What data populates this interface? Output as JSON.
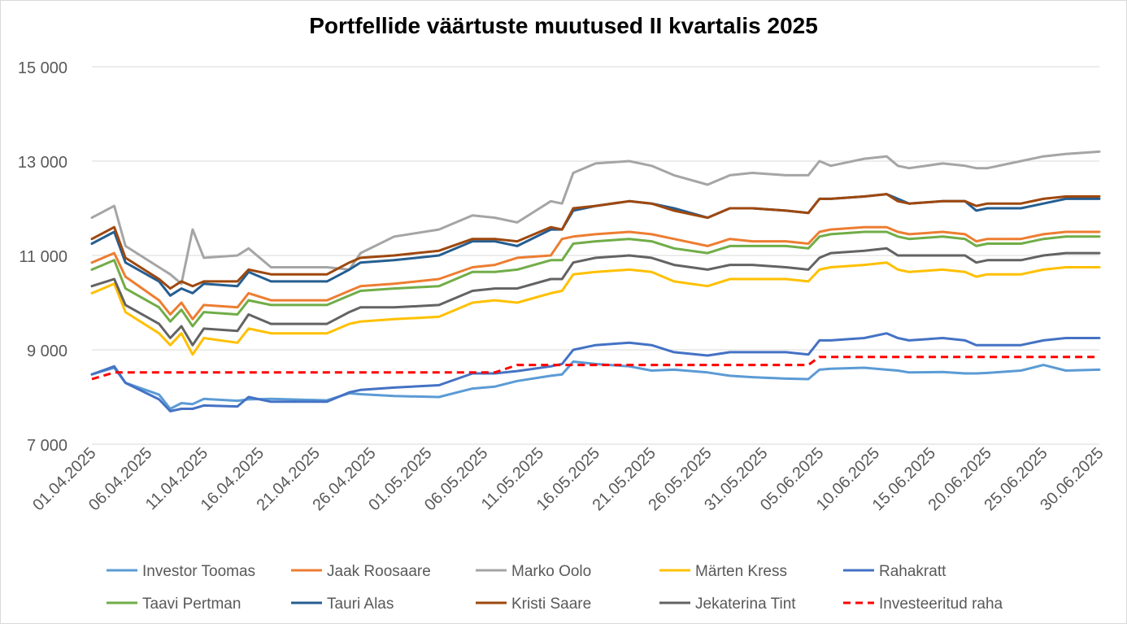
{
  "chart_data": {
    "type": "line",
    "title": "Portfellide väärtuste muutused II kvartalis 2025",
    "xlabel": "",
    "ylabel": "",
    "ylim": [
      7000,
      15000
    ],
    "y_ticks": [
      "7 000",
      "9 000",
      "11 000",
      "13 000",
      "15 000"
    ],
    "y_tick_values": [
      7000,
      9000,
      11000,
      13000,
      15000
    ],
    "x_range": [
      "2025-04-01",
      "2025-06-30"
    ],
    "x_tick_labels": [
      "01.04.2025",
      "06.04.2025",
      "11.04.2025",
      "16.04.2025",
      "21.04.2025",
      "26.04.2025",
      "01.05.2025",
      "06.05.2025",
      "11.05.2025",
      "16.05.2025",
      "21.05.2025",
      "26.05.2025",
      "31.05.2025",
      "05.06.2025",
      "10.06.2025",
      "15.06.2025",
      "20.06.2025",
      "25.06.2025",
      "30.06.2025"
    ],
    "grid": "horizontal",
    "legend_position": "bottom",
    "x": [
      "2025-04-01",
      "2025-04-03",
      "2025-04-04",
      "2025-04-07",
      "2025-04-08",
      "2025-04-09",
      "2025-04-10",
      "2025-04-11",
      "2025-04-14",
      "2025-04-15",
      "2025-04-17",
      "2025-04-22",
      "2025-04-24",
      "2025-04-25",
      "2025-04-28",
      "2025-05-02",
      "2025-05-05",
      "2025-05-07",
      "2025-05-09",
      "2025-05-12",
      "2025-05-13",
      "2025-05-14",
      "2025-05-16",
      "2025-05-19",
      "2025-05-21",
      "2025-05-23",
      "2025-05-26",
      "2025-05-28",
      "2025-05-30",
      "2025-06-02",
      "2025-06-04",
      "2025-06-05",
      "2025-06-06",
      "2025-06-09",
      "2025-06-11",
      "2025-06-12",
      "2025-06-13",
      "2025-06-16",
      "2025-06-18",
      "2025-06-19",
      "2025-06-20",
      "2025-06-23",
      "2025-06-25",
      "2025-06-27",
      "2025-06-30"
    ],
    "series": [
      {
        "name": "Investor Toomas",
        "color": "#5b9bd5",
        "dash": false,
        "values": [
          8480,
          8620,
          8300,
          8050,
          7750,
          7870,
          7850,
          7960,
          7920,
          7950,
          7960,
          7930,
          8080,
          8060,
          8020,
          8000,
          8180,
          8220,
          8340,
          8450,
          8480,
          8750,
          8700,
          8650,
          8560,
          8580,
          8520,
          8450,
          8420,
          8390,
          8380,
          8580,
          8600,
          8620,
          8580,
          8560,
          8520,
          8530,
          8500,
          8500,
          8510,
          8560,
          8680,
          8560,
          8580
        ]
      },
      {
        "name": "Jaak Roosaare",
        "color": "#ed7d31",
        "dash": false,
        "values": [
          10850,
          11050,
          10550,
          10050,
          9750,
          10000,
          9650,
          9950,
          9900,
          10200,
          10050,
          10050,
          10250,
          10350,
          10400,
          10500,
          10750,
          10800,
          10950,
          11000,
          11350,
          11400,
          11450,
          11500,
          11450,
          11350,
          11200,
          11350,
          11300,
          11300,
          11250,
          11500,
          11550,
          11600,
          11600,
          11500,
          11450,
          11500,
          11450,
          11300,
          11350,
          11350,
          11450,
          11500,
          11500
        ]
      },
      {
        "name": "Marko Oolo",
        "color": "#a5a5a5",
        "dash": false,
        "values": [
          11800,
          12050,
          11200,
          10750,
          10600,
          10400,
          11550,
          10950,
          11000,
          11150,
          10750,
          10750,
          10700,
          11050,
          11400,
          11550,
          11850,
          11800,
          11700,
          12150,
          12100,
          12750,
          12950,
          13000,
          12900,
          12700,
          12500,
          12700,
          12750,
          12700,
          12700,
          13000,
          12900,
          13050,
          13100,
          12900,
          12850,
          12950,
          12900,
          12850,
          12850,
          13000,
          13100,
          13150,
          13200
        ]
      },
      {
        "name": "Märten Kress",
        "color": "#ffc000",
        "dash": false,
        "values": [
          10200,
          10400,
          9800,
          9350,
          9100,
          9350,
          8900,
          9250,
          9150,
          9450,
          9350,
          9350,
          9550,
          9600,
          9650,
          9700,
          10000,
          10050,
          10000,
          10200,
          10250,
          10600,
          10650,
          10700,
          10650,
          10450,
          10350,
          10500,
          10500,
          10500,
          10450,
          10700,
          10750,
          10800,
          10850,
          10700,
          10650,
          10700,
          10650,
          10550,
          10600,
          10600,
          10700,
          10750,
          10750
        ]
      },
      {
        "name": "Rahakratt",
        "color": "#4472c4",
        "dash": false,
        "values": [
          8480,
          8650,
          8300,
          7950,
          7700,
          7750,
          7750,
          7820,
          7800,
          8000,
          7900,
          7900,
          8100,
          8150,
          8200,
          8250,
          8500,
          8500,
          8550,
          8650,
          8700,
          9000,
          9100,
          9150,
          9100,
          8950,
          8880,
          8950,
          8950,
          8950,
          8900,
          9200,
          9200,
          9250,
          9350,
          9250,
          9200,
          9250,
          9200,
          9100,
          9100,
          9100,
          9200,
          9250,
          9250
        ]
      },
      {
        "name": "Taavi Pertman",
        "color": "#70ad47",
        "dash": false,
        "values": [
          10700,
          10900,
          10300,
          9900,
          9600,
          9850,
          9500,
          9800,
          9750,
          10050,
          9950,
          9950,
          10150,
          10250,
          10300,
          10350,
          10650,
          10650,
          10700,
          10900,
          10900,
          11250,
          11300,
          11350,
          11300,
          11150,
          11050,
          11200,
          11200,
          11200,
          11150,
          11400,
          11450,
          11500,
          11500,
          11400,
          11350,
          11400,
          11350,
          11200,
          11250,
          11250,
          11350,
          11400,
          11400
        ]
      },
      {
        "name": "Tauri Alas",
        "color": "#255e91",
        "dash": false,
        "values": [
          11250,
          11500,
          10850,
          10450,
          10150,
          10300,
          10200,
          10400,
          10350,
          10650,
          10450,
          10450,
          10700,
          10850,
          10900,
          11000,
          11300,
          11300,
          11200,
          11550,
          11550,
          11950,
          12050,
          12150,
          12100,
          12000,
          11800,
          12000,
          12000,
          11950,
          11900,
          12200,
          12200,
          12250,
          12300,
          12200,
          12100,
          12150,
          12150,
          11950,
          12000,
          12000,
          12100,
          12200,
          12200
        ]
      },
      {
        "name": "Kristi Saare",
        "color": "#9e480e",
        "dash": false,
        "values": [
          11350,
          11600,
          10950,
          10500,
          10300,
          10450,
          10350,
          10450,
          10450,
          10700,
          10600,
          10600,
          10850,
          10950,
          11000,
          11100,
          11350,
          11350,
          11300,
          11600,
          11550,
          12000,
          12050,
          12150,
          12100,
          11950,
          11800,
          12000,
          12000,
          11950,
          11900,
          12200,
          12200,
          12250,
          12300,
          12150,
          12100,
          12150,
          12150,
          12050,
          12100,
          12100,
          12200,
          12250,
          12250
        ]
      },
      {
        "name": "Jekaterina Tint",
        "color": "#636363",
        "dash": false,
        "values": [
          10350,
          10500,
          9950,
          9550,
          9250,
          9500,
          9100,
          9450,
          9400,
          9750,
          9550,
          9550,
          9800,
          9900,
          9900,
          9950,
          10250,
          10300,
          10300,
          10500,
          10500,
          10850,
          10950,
          11000,
          10950,
          10800,
          10700,
          10800,
          10800,
          10750,
          10700,
          10950,
          11050,
          11100,
          11150,
          11000,
          11000,
          11000,
          11000,
          10850,
          10900,
          10900,
          11000,
          11050,
          11050
        ]
      },
      {
        "name": "Investeeritud raha",
        "color": "#ff0000",
        "dash": true,
        "values": [
          8380,
          8520,
          8520,
          8520,
          8520,
          8520,
          8520,
          8520,
          8520,
          8520,
          8520,
          8520,
          8520,
          8520,
          8520,
          8520,
          8520,
          8520,
          8680,
          8680,
          8680,
          8680,
          8680,
          8680,
          8680,
          8680,
          8680,
          8680,
          8680,
          8680,
          8680,
          8850,
          8850,
          8850,
          8850,
          8850,
          8850,
          8850,
          8850,
          8850,
          8850,
          8850,
          8850,
          8850,
          8850
        ]
      }
    ]
  }
}
